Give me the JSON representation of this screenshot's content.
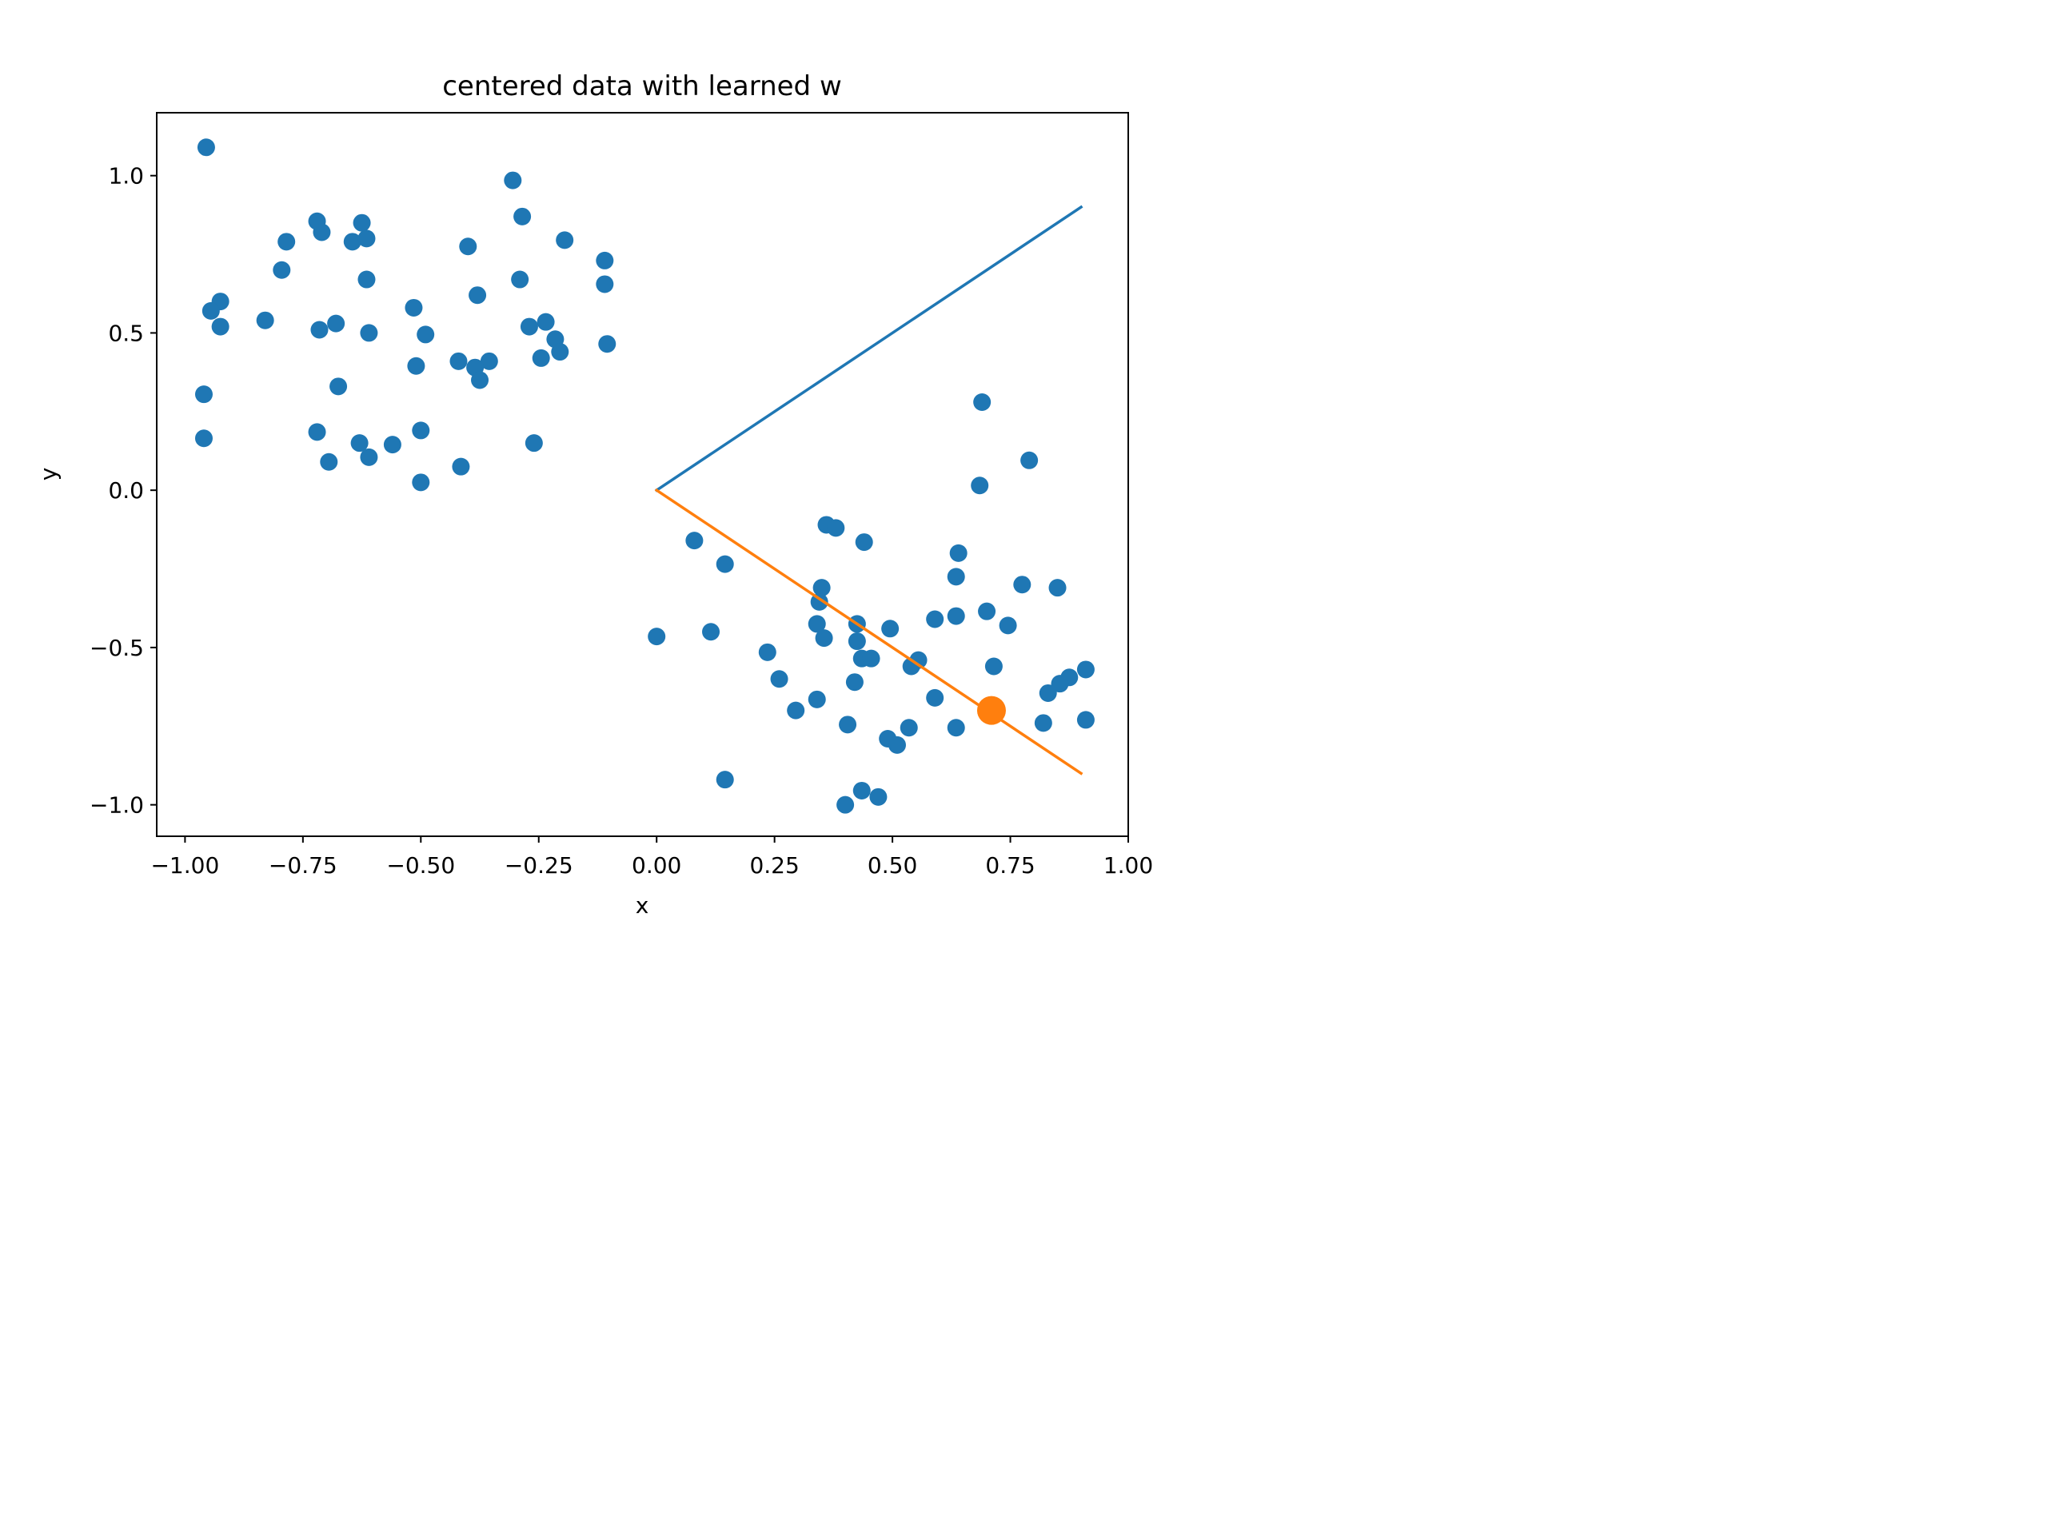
{
  "chart_data": {
    "type": "scatter",
    "title": "centered data with learned w",
    "xlabel": "x",
    "ylabel": "y",
    "xlim": [
      -1.06,
      1.0
    ],
    "ylim": [
      -1.1,
      1.2
    ],
    "grid": false,
    "xticks": [
      -1.0,
      -0.75,
      -0.5,
      -0.25,
      0.0,
      0.25,
      0.5,
      0.75,
      1.0
    ],
    "xtick_labels": [
      "−1.00",
      "−0.75",
      "−0.50",
      "−0.25",
      "0.00",
      "0.25",
      "0.50",
      "0.75",
      "1.00"
    ],
    "yticks": [
      -1.0,
      -0.5,
      0.0,
      0.5,
      1.0
    ],
    "ytick_labels": [
      "−1.0",
      "−0.5",
      "0.0",
      "0.5",
      "1.0"
    ],
    "colors": {
      "points": "#1f77b4",
      "line1": "#1f77b4",
      "line2": "#ff7f0e",
      "highlight": "#ff7f0e"
    },
    "series": [
      {
        "type": "scatter",
        "color": "#1f77b4",
        "points": [
          [
            -0.955,
            1.09
          ],
          [
            -0.305,
            0.985
          ],
          [
            -0.72,
            0.855
          ],
          [
            -0.625,
            0.85
          ],
          [
            -0.285,
            0.87
          ],
          [
            -0.71,
            0.82
          ],
          [
            -0.785,
            0.79
          ],
          [
            -0.645,
            0.79
          ],
          [
            -0.615,
            0.8
          ],
          [
            -0.4,
            0.775
          ],
          [
            -0.195,
            0.795
          ],
          [
            -0.11,
            0.73
          ],
          [
            -0.795,
            0.7
          ],
          [
            -0.615,
            0.67
          ],
          [
            -0.29,
            0.67
          ],
          [
            -0.11,
            0.655
          ],
          [
            -0.925,
            0.6
          ],
          [
            -0.945,
            0.57
          ],
          [
            -0.38,
            0.62
          ],
          [
            -0.515,
            0.58
          ],
          [
            -0.83,
            0.54
          ],
          [
            -0.235,
            0.535
          ],
          [
            -0.27,
            0.52
          ],
          [
            -0.68,
            0.53
          ],
          [
            -0.925,
            0.52
          ],
          [
            -0.715,
            0.51
          ],
          [
            -0.61,
            0.5
          ],
          [
            -0.49,
            0.495
          ],
          [
            -0.215,
            0.48
          ],
          [
            -0.105,
            0.465
          ],
          [
            -0.42,
            0.41
          ],
          [
            -0.355,
            0.41
          ],
          [
            -0.205,
            0.44
          ],
          [
            -0.245,
            0.42
          ],
          [
            -0.51,
            0.395
          ],
          [
            -0.385,
            0.39
          ],
          [
            -0.375,
            0.35
          ],
          [
            -0.96,
            0.305
          ],
          [
            -0.675,
            0.33
          ],
          [
            -0.96,
            0.165
          ],
          [
            -0.72,
            0.185
          ],
          [
            -0.5,
            0.19
          ],
          [
            -0.63,
            0.15
          ],
          [
            -0.56,
            0.145
          ],
          [
            -0.26,
            0.15
          ],
          [
            -0.695,
            0.09
          ],
          [
            -0.61,
            0.105
          ],
          [
            -0.415,
            0.075
          ],
          [
            -0.5,
            0.025
          ],
          [
            0.69,
            0.28
          ],
          [
            0.79,
            0.095
          ],
          [
            0.685,
            0.015
          ],
          [
            0.36,
            -0.11
          ],
          [
            0.38,
            -0.12
          ],
          [
            0.44,
            -0.165
          ],
          [
            0.08,
            -0.16
          ],
          [
            0.145,
            -0.235
          ],
          [
            0.64,
            -0.2
          ],
          [
            0.635,
            -0.275
          ],
          [
            0.35,
            -0.31
          ],
          [
            0.345,
            -0.355
          ],
          [
            0.775,
            -0.3
          ],
          [
            0.85,
            -0.31
          ],
          [
            0.7,
            -0.385
          ],
          [
            0.59,
            -0.41
          ],
          [
            0.635,
            -0.4
          ],
          [
            0.425,
            -0.425
          ],
          [
            0.34,
            -0.425
          ],
          [
            0.495,
            -0.44
          ],
          [
            0.745,
            -0.43
          ],
          [
            0.0,
            -0.465
          ],
          [
            0.115,
            -0.45
          ],
          [
            0.355,
            -0.47
          ],
          [
            0.425,
            -0.48
          ],
          [
            0.235,
            -0.515
          ],
          [
            0.435,
            -0.535
          ],
          [
            0.455,
            -0.535
          ],
          [
            0.555,
            -0.54
          ],
          [
            0.54,
            -0.56
          ],
          [
            0.715,
            -0.56
          ],
          [
            0.91,
            -0.57
          ],
          [
            0.26,
            -0.6
          ],
          [
            0.42,
            -0.61
          ],
          [
            0.875,
            -0.595
          ],
          [
            0.855,
            -0.615
          ],
          [
            0.83,
            -0.645
          ],
          [
            0.59,
            -0.66
          ],
          [
            0.34,
            -0.665
          ],
          [
            0.295,
            -0.7
          ],
          [
            0.405,
            -0.745
          ],
          [
            0.535,
            -0.755
          ],
          [
            0.635,
            -0.755
          ],
          [
            0.82,
            -0.74
          ],
          [
            0.91,
            -0.73
          ],
          [
            0.49,
            -0.79
          ],
          [
            0.51,
            -0.81
          ],
          [
            0.145,
            -0.92
          ],
          [
            0.435,
            -0.955
          ],
          [
            0.47,
            -0.975
          ],
          [
            0.4,
            -1.0
          ]
        ]
      },
      {
        "type": "line",
        "color": "#1f77b4",
        "points": [
          [
            0.0,
            0.0
          ],
          [
            0.9,
            0.9
          ]
        ]
      },
      {
        "type": "line",
        "color": "#ff7f0e",
        "points": [
          [
            0.0,
            0.0
          ],
          [
            0.9,
            -0.9
          ]
        ]
      },
      {
        "type": "scatter-highlight",
        "color": "#ff7f0e",
        "points": [
          [
            0.71,
            -0.7
          ]
        ]
      }
    ]
  }
}
